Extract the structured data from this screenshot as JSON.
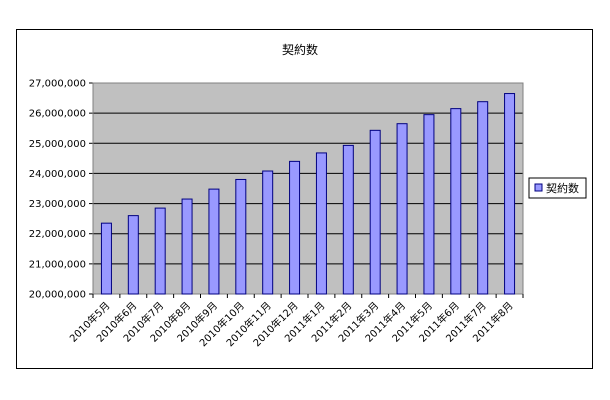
{
  "chart_data": {
    "type": "bar",
    "title": "契約数",
    "xlabel": "",
    "ylabel": "",
    "ylim": [
      20000000,
      27000000
    ],
    "y_ticks": [
      "20,000,000",
      "21,000,000",
      "22,000,000",
      "23,000,000",
      "24,000,000",
      "25,000,000",
      "26,000,000",
      "27,000,000"
    ],
    "grid": true,
    "legend_position": "right",
    "colors": {
      "bar_fill": "#9999ff",
      "bar_stroke": "#000080",
      "plot_bg": "#c0c0c0"
    },
    "categories": [
      "2010年5月",
      "2010年6月",
      "2010年7月",
      "2010年8月",
      "2010年9月",
      "2010年10月",
      "2010年11月",
      "2010年12月",
      "2011年1月",
      "2011年2月",
      "2011年3月",
      "2011年4月",
      "2011年5月",
      "2011年6月",
      "2011年7月",
      "2011年8月"
    ],
    "series": [
      {
        "name": "契約数",
        "values": [
          22350000,
          22600000,
          22850000,
          23150000,
          23480000,
          23800000,
          24080000,
          24400000,
          24680000,
          24930000,
          25430000,
          25650000,
          25950000,
          26150000,
          26380000,
          26650000
        ]
      }
    ]
  }
}
